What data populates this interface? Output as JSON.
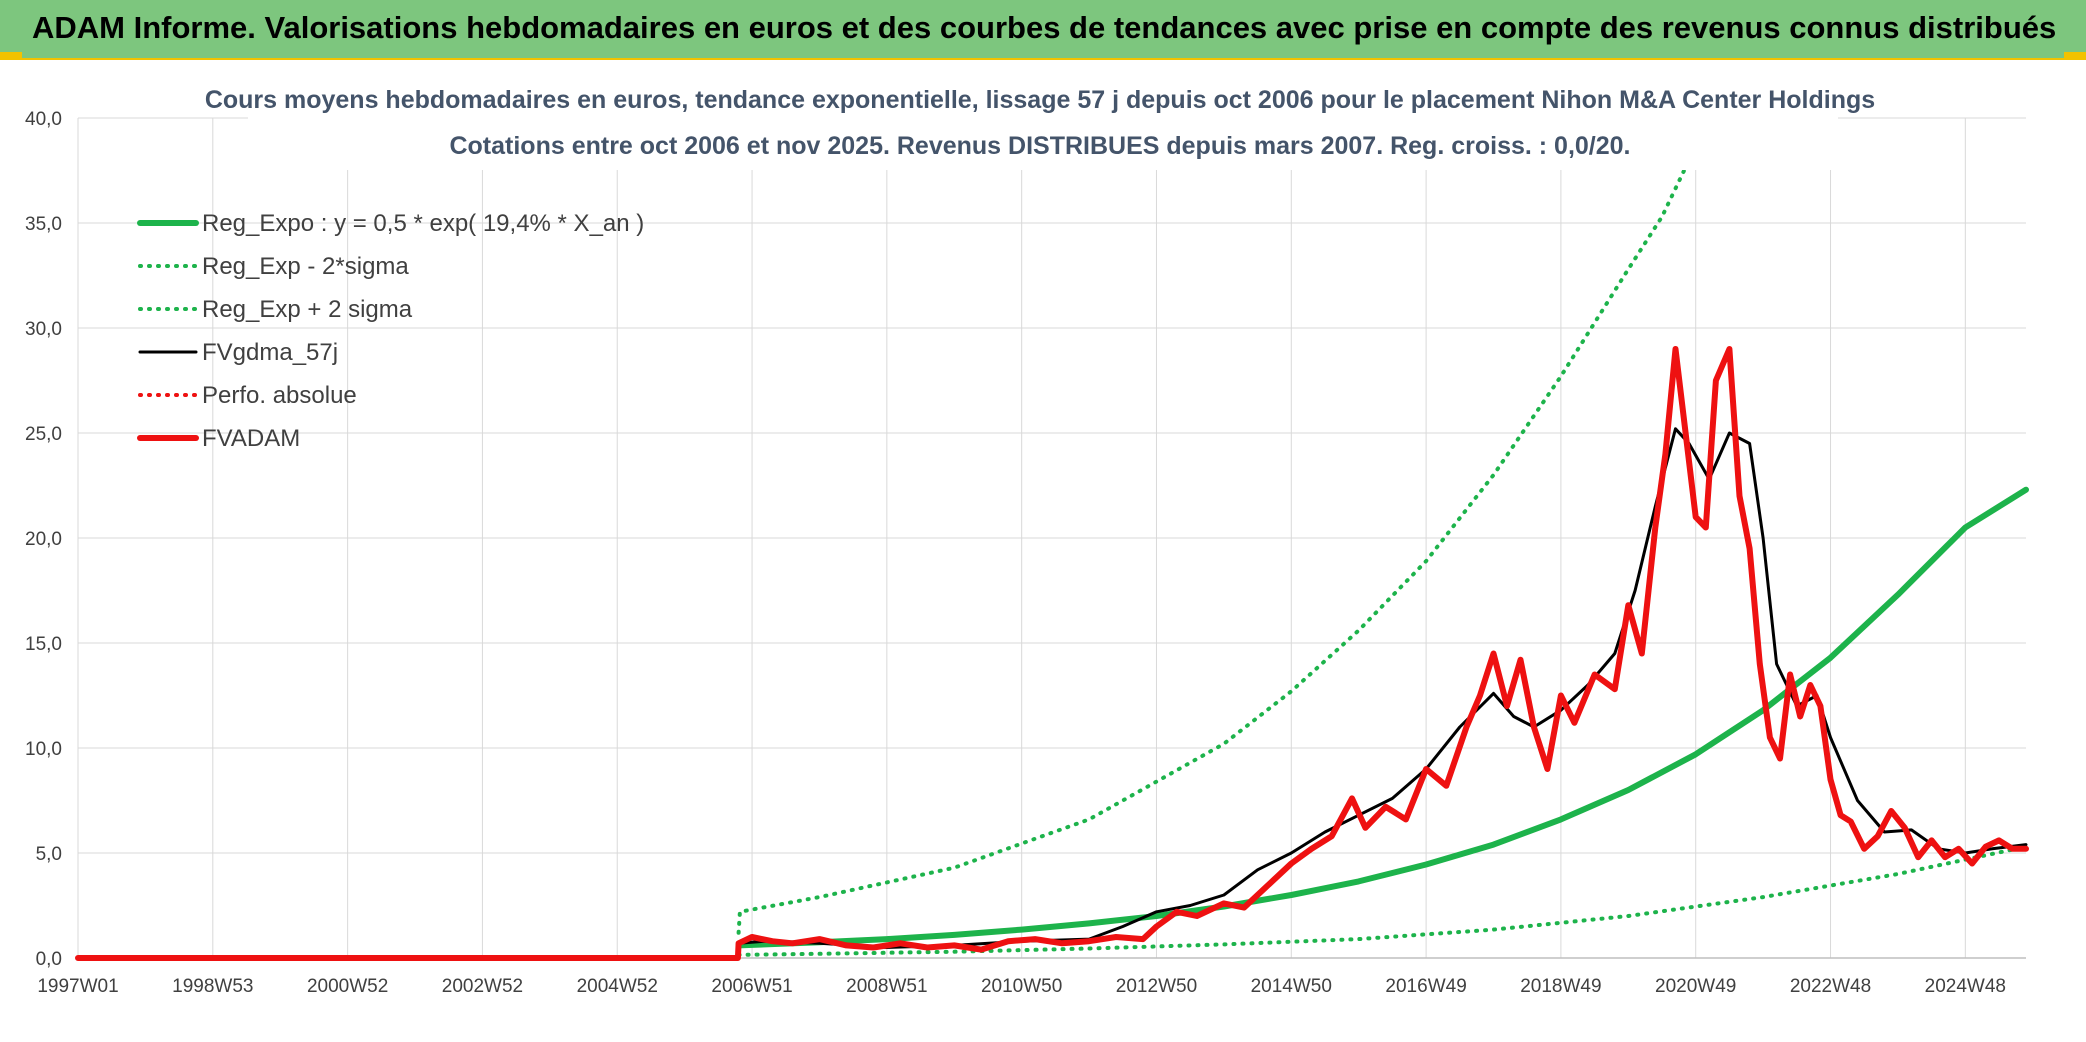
{
  "banner": {
    "title": "ADAM Informe. Valorisations hebdomadaires en euros et des courbes de tendances avec prise en compte des revenus connus distribués"
  },
  "colors": {
    "banner_bg": "#7dc67e",
    "accent_border": "#f2c200",
    "reg_green": "#1db34b",
    "fvgdma_black": "#000000",
    "fvadam_red": "#ee1111",
    "grid": "#d9d9d9"
  },
  "chart_data": {
    "type": "line",
    "title": "Cours moyens hebdomadaires en euros, tendance exponentielle, lissage 57 j depuis oct 2006 pour le placement Nihon M&A Center Holdings",
    "subtitle": "Cotations entre oct 2006 et nov 2025. Revenus DISTRIBUES depuis mars 2007. Reg. croiss. : 0,0/20.",
    "xlabel": "",
    "ylabel": "",
    "x_range": [
      1997.0,
      2025.9
    ],
    "ylim": [
      0,
      40
    ],
    "y_ticks": [
      "0,0",
      "5,0",
      "10,0",
      "15,0",
      "20,0",
      "25,0",
      "30,0",
      "35,0",
      "40,0"
    ],
    "x_tick_labels": [
      "1997W01",
      "1998W53",
      "2000W52",
      "2002W52",
      "2004W52",
      "2006W51",
      "2008W51",
      "2010W50",
      "2012W50",
      "2014W50",
      "2016W49",
      "2018W49",
      "2020W49",
      "2022W48",
      "2024W48"
    ],
    "x_tick_years": [
      1997.0,
      1999.0,
      2001.0,
      2003.0,
      2005.0,
      2007.0,
      2009.0,
      2011.0,
      2013.0,
      2015.0,
      2017.0,
      2019.0,
      2021.0,
      2023.0,
      2025.0
    ],
    "grid": true,
    "legend_position": "top-left",
    "series": [
      {
        "name": "Reg_Expo : y = 0,5 * exp( 19,4% *  X_an )",
        "style": "solid-thick",
        "color": "#1db34b",
        "x": [
          2006.8,
          2008.0,
          2009.0,
          2010.0,
          2011.0,
          2012.0,
          2013.0,
          2014.0,
          2015.0,
          2016.0,
          2017.0,
          2018.0,
          2019.0,
          2020.0,
          2021.0,
          2022.0,
          2023.0,
          2024.0,
          2025.0,
          2025.9
        ],
        "y": [
          0.6,
          0.75,
          0.9,
          1.1,
          1.35,
          1.65,
          2.0,
          2.45,
          3.0,
          3.65,
          4.45,
          5.4,
          6.6,
          8.0,
          9.7,
          11.8,
          14.3,
          17.3,
          20.5,
          22.3
        ]
      },
      {
        "name": "Reg_Exp - 2*sigma",
        "style": "dotted",
        "color": "#1db34b",
        "x": [
          2006.8,
          2008.0,
          2010.0,
          2012.0,
          2014.0,
          2016.0,
          2018.0,
          2020.0,
          2022.0,
          2024.0,
          2025.9
        ],
        "y": [
          0.15,
          0.2,
          0.3,
          0.45,
          0.65,
          0.9,
          1.35,
          2.0,
          2.9,
          4.0,
          5.3
        ]
      },
      {
        "name": "Reg_Exp + 2 sigma",
        "style": "dotted",
        "color": "#1db34b",
        "x": [
          2006.8,
          2006.82,
          2008.0,
          2010.0,
          2012.0,
          2014.0,
          2015.0,
          2016.0,
          2017.0,
          2018.0,
          2019.0,
          2020.0,
          2020.5,
          2021.2
        ],
        "y": [
          1.2,
          2.2,
          2.9,
          4.3,
          6.6,
          10.2,
          12.7,
          15.6,
          18.9,
          23.0,
          27.7,
          32.8,
          35.3,
          40.0
        ]
      },
      {
        "name": "FVgdma_57j",
        "style": "solid",
        "color": "#000000",
        "x": [
          1997.0,
          2006.79,
          2006.8,
          2007.2,
          2008.0,
          2009.0,
          2010.0,
          2011.0,
          2012.0,
          2012.5,
          2013.0,
          2013.5,
          2014.0,
          2014.5,
          2015.0,
          2015.5,
          2016.0,
          2016.5,
          2017.0,
          2017.5,
          2018.0,
          2018.3,
          2018.6,
          2019.0,
          2019.4,
          2019.8,
          2020.1,
          2020.4,
          2020.7,
          2020.9,
          2021.2,
          2021.5,
          2021.8,
          2022.0,
          2022.2,
          2022.5,
          2022.8,
          2023.0,
          2023.4,
          2023.8,
          2024.2,
          2024.6,
          2025.0,
          2025.4,
          2025.9
        ],
        "y": [
          0.0,
          0.0,
          0.7,
          0.8,
          0.7,
          0.5,
          0.6,
          0.8,
          0.9,
          1.5,
          2.2,
          2.5,
          3.0,
          4.2,
          5.0,
          6.0,
          6.8,
          7.6,
          9.0,
          11.0,
          12.6,
          11.5,
          11.0,
          11.8,
          13.0,
          14.5,
          17.5,
          21.5,
          25.2,
          24.5,
          22.8,
          25.0,
          24.5,
          20.0,
          14.0,
          12.0,
          12.5,
          10.5,
          7.5,
          6.0,
          6.1,
          5.2,
          5.0,
          5.2,
          5.4
        ]
      },
      {
        "name": "Perfo. absolue",
        "style": "dotted",
        "color": "#ee1111",
        "x": [],
        "y": []
      },
      {
        "name": "FVADAM",
        "style": "solid-thick",
        "color": "#ee1111",
        "x": [
          1997.0,
          2006.79,
          2006.8,
          2007.0,
          2007.3,
          2007.6,
          2008.0,
          2008.4,
          2008.8,
          2009.2,
          2009.6,
          2010.0,
          2010.4,
          2010.8,
          2011.2,
          2011.6,
          2012.0,
          2012.4,
          2012.8,
          2013.0,
          2013.3,
          2013.6,
          2014.0,
          2014.3,
          2014.6,
          2015.0,
          2015.3,
          2015.6,
          2015.9,
          2016.1,
          2016.4,
          2016.7,
          2017.0,
          2017.3,
          2017.6,
          2017.8,
          2018.0,
          2018.2,
          2018.4,
          2018.6,
          2018.8,
          2019.0,
          2019.2,
          2019.5,
          2019.8,
          2020.0,
          2020.2,
          2020.4,
          2020.55,
          2020.7,
          2020.85,
          2021.0,
          2021.15,
          2021.3,
          2021.5,
          2021.65,
          2021.8,
          2021.95,
          2022.1,
          2022.25,
          2022.4,
          2022.55,
          2022.7,
          2022.85,
          2023.0,
          2023.15,
          2023.3,
          2023.5,
          2023.7,
          2023.9,
          2024.1,
          2024.3,
          2024.5,
          2024.7,
          2024.9,
          2025.1,
          2025.3,
          2025.5,
          2025.7,
          2025.9
        ],
        "y": [
          0.0,
          0.0,
          0.7,
          1.0,
          0.8,
          0.7,
          0.9,
          0.6,
          0.5,
          0.7,
          0.5,
          0.6,
          0.4,
          0.8,
          0.9,
          0.7,
          0.8,
          1.0,
          0.9,
          1.5,
          2.2,
          2.0,
          2.6,
          2.4,
          3.3,
          4.5,
          5.2,
          5.8,
          7.6,
          6.2,
          7.2,
          6.6,
          9.0,
          8.2,
          11.0,
          12.5,
          14.5,
          12.0,
          14.2,
          11.0,
          9.0,
          12.5,
          11.2,
          13.5,
          12.8,
          16.8,
          14.5,
          20.5,
          24.0,
          29.0,
          25.0,
          21.0,
          20.5,
          27.5,
          29.0,
          22.0,
          19.5,
          14.0,
          10.5,
          9.5,
          13.5,
          11.5,
          13.0,
          12.0,
          8.5,
          6.8,
          6.5,
          5.2,
          5.8,
          7.0,
          6.2,
          4.8,
          5.6,
          4.8,
          5.2,
          4.5,
          5.3,
          5.6,
          5.2,
          5.2
        ]
      }
    ]
  }
}
